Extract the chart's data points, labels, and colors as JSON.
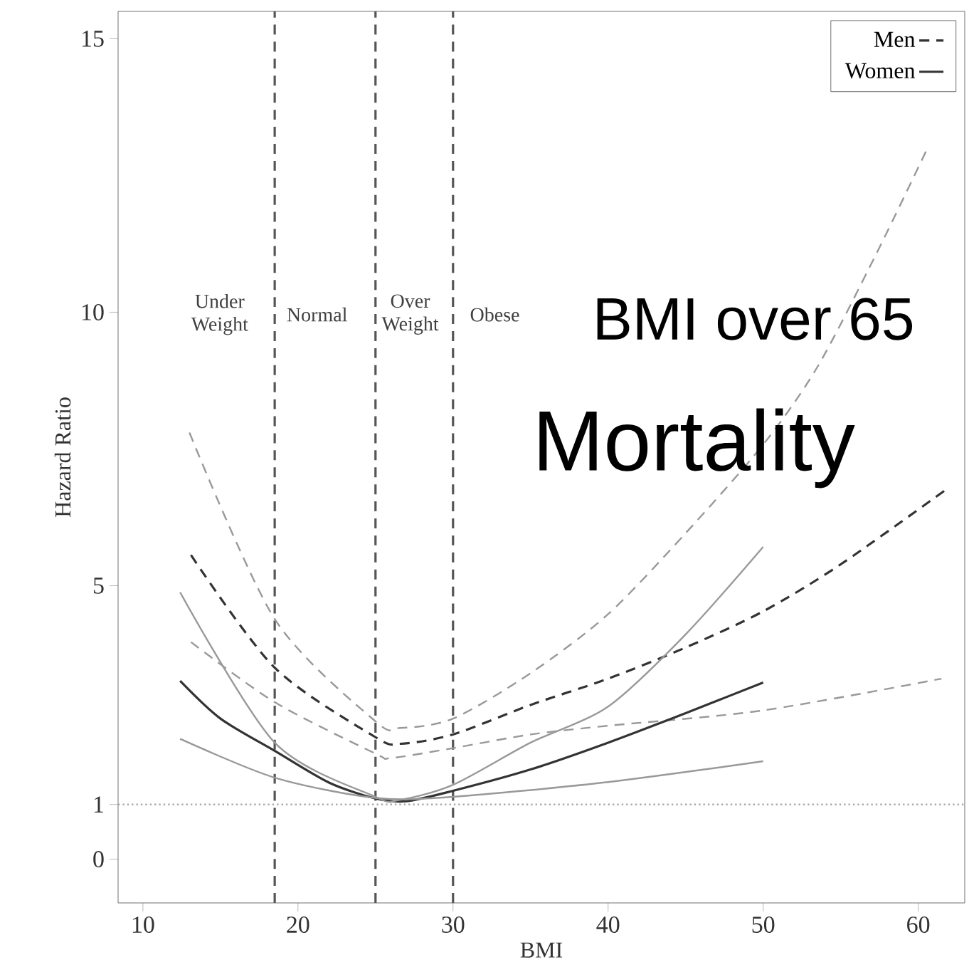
{
  "chart_data": {
    "type": "line",
    "xlabel": "BMI",
    "ylabel": "Hazard Ratio",
    "xlim": [
      8.4,
      63
    ],
    "ylim": [
      -0.8,
      15.5
    ],
    "xticks": [
      10,
      20,
      30,
      40,
      50,
      60
    ],
    "yticks": [
      0,
      1,
      5,
      10,
      15
    ],
    "legend": "top right",
    "series": [
      {
        "name": "Men",
        "color": "#333333",
        "line_style": "dashed",
        "x": [
          13.1,
          18.5,
          25,
          26.6,
          30,
          35,
          40,
          45,
          50,
          55,
          62
        ],
        "values": [
          5.56,
          3.5,
          2.23,
          2.11,
          2.28,
          2.82,
          3.3,
          3.87,
          4.53,
          5.39,
          6.8
        ]
      },
      {
        "color": "#999999",
        "line_style": "dashed",
        "x": [
          13,
          18.5,
          25,
          26.6,
          30,
          35,
          40,
          45,
          50,
          53.5,
          57.3,
          60.6
        ],
        "values": [
          7.8,
          4.39,
          2.52,
          2.4,
          2.57,
          3.4,
          4.48,
          5.96,
          7.58,
          9.0,
          11.07,
          13.0
        ]
      },
      {
        "color": "#999999",
        "line_style": "dashed",
        "x": [
          13.1,
          18.5,
          25,
          26,
          30,
          35,
          40,
          50,
          61.5
        ],
        "values": [
          3.97,
          2.87,
          1.93,
          1.85,
          2.03,
          2.28,
          2.44,
          2.72,
          3.3
        ]
      },
      {
        "name": "Women",
        "color": "#333333",
        "line_style": "solid",
        "x": [
          12.4,
          15,
          18.5,
          22,
          25,
          27,
          30,
          35,
          40,
          45,
          50
        ],
        "values": [
          3.26,
          2.57,
          1.98,
          1.4,
          1.11,
          1.06,
          1.25,
          1.64,
          2.13,
          2.67,
          3.23
        ]
      },
      {
        "color": "#999999",
        "line_style": "solid",
        "x": [
          12.4,
          18.5,
          25,
          26.5,
          30,
          35,
          40,
          45,
          50
        ],
        "values": [
          4.88,
          2.13,
          1.14,
          1.08,
          1.36,
          2.13,
          2.79,
          4.11,
          5.71
        ]
      },
      {
        "color": "#999999",
        "line_style": "solid",
        "x": [
          12.4,
          18.5,
          25,
          30,
          40,
          50
        ],
        "values": [
          2.2,
          1.49,
          1.12,
          1.14,
          1.41,
          1.79
        ]
      }
    ],
    "ref_lines": [
      {
        "axis": "x",
        "value": 18.5,
        "color": "#555555",
        "line_style": "dashed"
      },
      {
        "axis": "x",
        "value": 25,
        "color": "#555555",
        "line_style": "dashed"
      },
      {
        "axis": "x",
        "value": 30,
        "color": "#555555",
        "line_style": "dashed"
      },
      {
        "axis": "y",
        "value": 1,
        "color": "#aaaaaa",
        "line_style": "dotted"
      }
    ],
    "annotations": [
      "Under Weight",
      "Normal",
      "Over Weight",
      "Obese",
      "BMI over 65",
      "Mortality"
    ]
  }
}
